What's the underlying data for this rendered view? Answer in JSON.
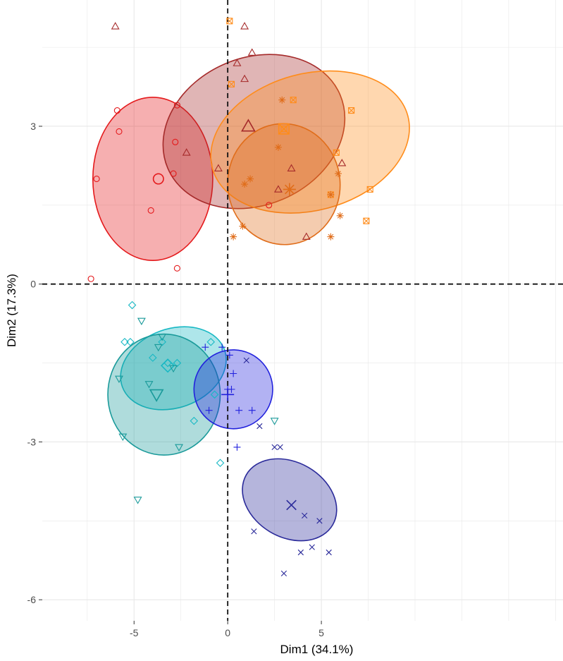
{
  "chart_data": {
    "type": "scatter",
    "title": "",
    "xlabel": "Dim1 (34.1%)",
    "ylabel": "Dim2 (17.3%)",
    "xlim": [
      -9.9,
      17.9
    ],
    "ylim": [
      -6.4,
      5.4
    ],
    "x_ticks": [
      -5,
      0,
      5
    ],
    "y_ticks": [
      -6,
      -3,
      0,
      3
    ],
    "x_tick_labels": [
      "-5",
      "0",
      "5"
    ],
    "y_tick_labels": [
      "-6",
      "-3",
      "0",
      "3"
    ],
    "grid": true,
    "reference_lines": {
      "x": 0,
      "y": 0,
      "style": "dashed"
    },
    "legend": "none",
    "groups": [
      {
        "color": "#e41a1c",
        "shape": "circle",
        "points": [
          [
            -5.9,
            3.3
          ],
          [
            -5.8,
            2.9
          ],
          [
            -7.0,
            2.0
          ],
          [
            -4.1,
            1.4
          ],
          [
            -2.8,
            2.7
          ],
          [
            -2.9,
            2.1
          ],
          [
            -2.7,
            3.4
          ],
          [
            -2.7,
            0.3
          ],
          [
            -7.3,
            0.1
          ],
          [
            2.2,
            1.5
          ]
        ],
        "centroid": [
          -3.7,
          2.0
        ],
        "ellipse": {
          "cx": -4.0,
          "cy": 2.0,
          "rx": 3.2,
          "ry": 1.55,
          "angle": 0
        }
      },
      {
        "color": "#a52a2a",
        "shape": "triangle",
        "points": [
          [
            -6.0,
            4.9
          ],
          [
            0.9,
            4.9
          ],
          [
            0.5,
            4.2
          ],
          [
            1.3,
            4.4
          ],
          [
            0.9,
            3.9
          ],
          [
            -2.2,
            2.5
          ],
          [
            -0.5,
            2.2
          ],
          [
            3.4,
            2.2
          ],
          [
            2.7,
            1.8
          ],
          [
            4.2,
            0.9
          ],
          [
            6.1,
            2.3
          ]
        ],
        "centroid": [
          1.1,
          3.0
        ],
        "ellipse": {
          "cx": 1.4,
          "cy": 2.9,
          "rx": 5.0,
          "ry": 1.4,
          "angle": -23
        }
      },
      {
        "color": "#ff8c1a",
        "shape": "square-cross",
        "points": [
          [
            0.1,
            5.0
          ],
          [
            0.2,
            3.8
          ],
          [
            3.5,
            3.5
          ],
          [
            6.6,
            3.3
          ],
          [
            3.0,
            2.95
          ],
          [
            5.8,
            2.5
          ],
          [
            5.5,
            1.7
          ],
          [
            7.6,
            1.8
          ],
          [
            7.4,
            1.2
          ]
        ],
        "centroid": [
          3.0,
          2.95
        ],
        "ellipse": {
          "cx": 4.4,
          "cy": 2.7,
          "rx": 5.4,
          "ry": 1.3,
          "angle": -15
        }
      },
      {
        "color": "#e06d1a",
        "shape": "asterisk",
        "points": [
          [
            2.9,
            3.5
          ],
          [
            2.7,
            2.6
          ],
          [
            0.9,
            1.9
          ],
          [
            1.2,
            2.0
          ],
          [
            0.3,
            0.9
          ],
          [
            0.8,
            1.1
          ],
          [
            3.3,
            1.8
          ],
          [
            5.5,
            1.7
          ],
          [
            5.9,
            2.1
          ],
          [
            6.0,
            1.3
          ],
          [
            5.5,
            0.9
          ]
        ],
        "centroid": [
          3.3,
          1.8
        ],
        "ellipse": {
          "cx": 3.0,
          "cy": 1.9,
          "rx": 3.0,
          "ry": 1.15,
          "angle": -5
        }
      },
      {
        "color": "#17b8c4",
        "shape": "diamond",
        "points": [
          [
            -5.1,
            -0.4
          ],
          [
            -5.5,
            -1.1
          ],
          [
            -5.2,
            -1.1
          ],
          [
            -4.0,
            -1.4
          ],
          [
            -3.5,
            -1.1
          ],
          [
            -3.2,
            -1.5
          ],
          [
            -2.7,
            -1.5
          ],
          [
            -0.9,
            -1.1
          ],
          [
            -0.7,
            -2.1
          ],
          [
            -1.8,
            -2.6
          ],
          [
            -0.4,
            -3.4
          ]
        ],
        "centroid": [
          -3.2,
          -1.55
        ],
        "ellipse": {
          "cx": -2.9,
          "cy": -1.6,
          "rx": 2.9,
          "ry": 0.75,
          "angle": -20
        }
      },
      {
        "color": "#1a9a9a",
        "shape": "triangle-down",
        "points": [
          [
            -4.6,
            -0.7
          ],
          [
            -3.7,
            -1.2
          ],
          [
            -3.5,
            -1.0
          ],
          [
            -2.9,
            -1.6
          ],
          [
            -4.2,
            -1.9
          ],
          [
            -5.8,
            -1.8
          ],
          [
            -5.6,
            -2.9
          ],
          [
            -2.6,
            -3.1
          ],
          [
            -4.8,
            -4.1
          ],
          [
            2.5,
            -2.6
          ]
        ],
        "centroid": [
          -3.8,
          -2.1
        ],
        "ellipse": {
          "cx": -3.4,
          "cy": -2.1,
          "rx": 3.0,
          "ry": 1.15,
          "angle": 0
        }
      },
      {
        "color": "#2222dd",
        "shape": "plus",
        "points": [
          [
            -1.2,
            -1.2
          ],
          [
            -0.3,
            -1.2
          ],
          [
            0.1,
            -1.35
          ],
          [
            0.3,
            -1.7
          ],
          [
            0.0,
            -2.0
          ],
          [
            0.2,
            -2.0
          ],
          [
            -1.0,
            -2.4
          ],
          [
            0.6,
            -2.4
          ],
          [
            1.3,
            -2.4
          ],
          [
            0.5,
            -3.1
          ]
        ],
        "centroid": [
          0.0,
          -2.1
        ],
        "ellipse": {
          "cx": 0.3,
          "cy": -2.0,
          "rx": 2.1,
          "ry": 0.75,
          "angle": -20
        }
      },
      {
        "color": "#2a2a9a",
        "shape": "cross",
        "points": [
          [
            1.0,
            -1.45
          ],
          [
            1.7,
            -2.7
          ],
          [
            2.5,
            -3.1
          ],
          [
            2.8,
            -3.1
          ],
          [
            1.4,
            -4.7
          ],
          [
            4.1,
            -4.4
          ],
          [
            4.9,
            -4.5
          ],
          [
            3.9,
            -5.1
          ],
          [
            4.5,
            -5.0
          ],
          [
            5.4,
            -5.1
          ],
          [
            3.0,
            -5.5
          ]
        ],
        "centroid": [
          3.4,
          -4.2
        ],
        "ellipse": {
          "cx": 3.3,
          "cy": -4.1,
          "rx": 2.0,
          "ry": 0.95,
          "angle": -60
        }
      }
    ]
  }
}
